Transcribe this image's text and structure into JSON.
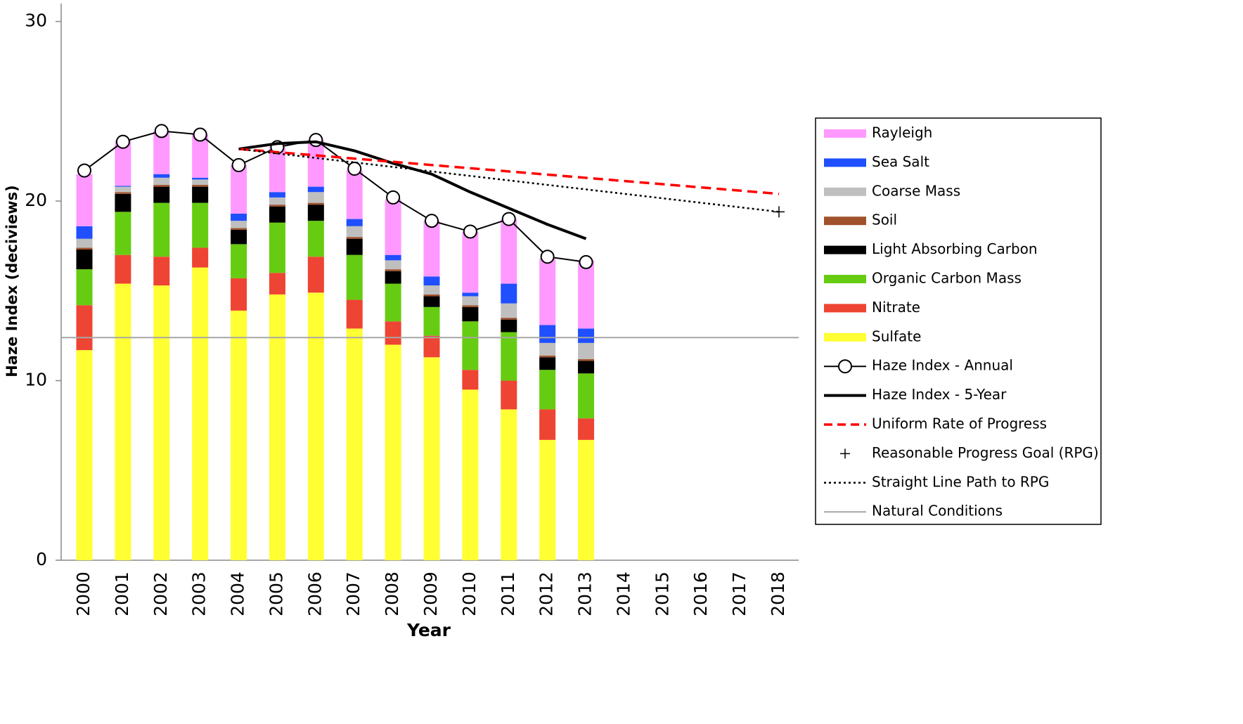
{
  "chart_data": {
    "type": "stacked-bar-line",
    "x_label": "Year",
    "y_label": "Haze Index (deciviews)",
    "categories": [
      "2000",
      "2001",
      "2002",
      "2003",
      "2004",
      "2005",
      "2006",
      "2007",
      "2008",
      "2009",
      "2010",
      "2011",
      "2012",
      "2013",
      "2014",
      "2015",
      "2016",
      "2017",
      "2018"
    ],
    "ylim": [
      0,
      31
    ],
    "yticks": [
      0,
      10,
      20,
      30
    ],
    "series": [
      {
        "name": "Rayleigh",
        "kind": "bar",
        "color": "#ff99ff",
        "values": [
          2.9,
          2.5,
          2.4,
          2.4,
          2.7,
          2.5,
          2.6,
          2.7,
          3.1,
          3.1,
          3.4,
          3.6,
          3.7,
          3.8,
          null,
          null,
          null,
          null,
          null
        ]
      },
      {
        "name": "Sea Salt",
        "kind": "bar",
        "color": "#1f4fff",
        "values": [
          0.7,
          0.05,
          0.2,
          0.1,
          0.4,
          0.3,
          0.3,
          0.4,
          0.3,
          0.5,
          0.2,
          1.1,
          1.0,
          0.8,
          null,
          null,
          null,
          null,
          null
        ]
      },
      {
        "name": "Coarse Mass",
        "kind": "bar",
        "color": "#bfbfbf",
        "values": [
          0.5,
          0.3,
          0.4,
          0.3,
          0.4,
          0.4,
          0.6,
          0.6,
          0.5,
          0.5,
          0.5,
          0.8,
          0.7,
          0.9,
          null,
          null,
          null,
          null,
          null
        ]
      },
      {
        "name": "Soil",
        "kind": "bar",
        "color": "#a0522d",
        "values": [
          0.1,
          0.1,
          0.1,
          0.1,
          0.1,
          0.1,
          0.1,
          0.1,
          0.1,
          0.1,
          0.1,
          0.1,
          0.1,
          0.1,
          null,
          null,
          null,
          null,
          null
        ]
      },
      {
        "name": "Light Absorbing Carbon",
        "kind": "bar",
        "color": "#000000",
        "values": [
          1.1,
          1.0,
          0.9,
          0.9,
          0.8,
          0.9,
          0.9,
          0.9,
          0.7,
          0.6,
          0.8,
          0.7,
          0.7,
          0.7,
          null,
          null,
          null,
          null,
          null
        ]
      },
      {
        "name": "Organic Carbon Mass",
        "kind": "bar",
        "color": "#66cc11",
        "values": [
          2.0,
          2.4,
          3.0,
          2.5,
          1.9,
          2.8,
          2.0,
          2.5,
          2.1,
          1.6,
          2.7,
          2.7,
          2.2,
          2.5,
          null,
          null,
          null,
          null,
          null
        ]
      },
      {
        "name": "Nitrate",
        "kind": "bar",
        "color": "#ee4433",
        "values": [
          2.5,
          1.6,
          1.6,
          1.1,
          1.8,
          1.2,
          2.0,
          1.6,
          1.3,
          1.2,
          1.1,
          1.6,
          1.7,
          1.2,
          null,
          null,
          null,
          null,
          null
        ]
      },
      {
        "name": "Sulfate",
        "kind": "bar",
        "color": "#ffff33",
        "values": [
          11.7,
          15.4,
          15.3,
          16.3,
          13.9,
          14.8,
          14.9,
          12.9,
          12.0,
          11.3,
          9.5,
          8.4,
          6.7,
          6.7,
          null,
          null,
          null,
          null,
          null
        ]
      },
      {
        "name": "Haze Index - Annual",
        "kind": "line-marker",
        "color": "#000000",
        "values": [
          21.7,
          23.3,
          23.9,
          23.7,
          22.0,
          23.0,
          23.4,
          21.8,
          20.2,
          18.9,
          18.3,
          19.0,
          16.9,
          16.6,
          null,
          null,
          null,
          null,
          null
        ]
      },
      {
        "name": "Haze Index - 5-Year",
        "kind": "line",
        "color": "#000000",
        "x": [
          "2004",
          "2005",
          "2006",
          "2007",
          "2008",
          "2009",
          "2010",
          "2011",
          "2012",
          "2013"
        ],
        "values": [
          22.9,
          23.2,
          23.3,
          22.8,
          22.1,
          21.5,
          20.5,
          19.6,
          18.7,
          17.9
        ]
      },
      {
        "name": "Uniform Rate of Progress",
        "kind": "dashed",
        "color": "#ff0000",
        "x": [
          "2004",
          "2018"
        ],
        "values": [
          22.9,
          20.4
        ]
      },
      {
        "name": "Reasonable Progress Goal (RPG)",
        "kind": "plus",
        "color": "#000000",
        "x": [
          "2018"
        ],
        "values": [
          19.4
        ]
      },
      {
        "name": "Straight Line Path to RPG",
        "kind": "dotted",
        "color": "#000000",
        "x": [
          "2004",
          "2018"
        ],
        "values": [
          22.9,
          19.4
        ]
      },
      {
        "name": "Natural Conditions",
        "kind": "hline",
        "color": "#a6a6a6",
        "value": 12.4
      }
    ]
  }
}
